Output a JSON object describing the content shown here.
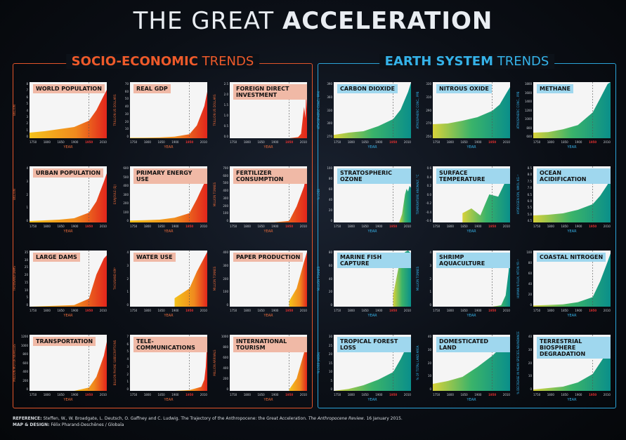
{
  "title_part1": "THE GREAT ",
  "title_part2": "ACCELERATION",
  "left_section": {
    "title_bold": "SOCIO-ECONOMIC",
    "title_rest": " TRENDS"
  },
  "right_section": {
    "title_bold": "EARTH SYSTEM",
    "title_rest": " TRENDS"
  },
  "footer": {
    "ref_label": "REFERENCE:",
    "ref_text": " Steffen, W., W. Broadgate, L. Deutsch, O. Gaffney and C. Ludwig. The Trajectory of the Anthropocene: the Great Acceleration. ",
    "ref_journal": "The Anthropocene Review",
    "ref_date": ". 16 January 2015.",
    "design_label": "MAP & DESIGN:",
    "design_text": " Félix Pharand-Deschênes / Globaïa"
  },
  "colors": {
    "socio_accent": "#ee5a2a",
    "earth_accent": "#35b2e8"
  },
  "chart_data": [
    {
      "type": "area",
      "title": "WORLD POPULATION",
      "group": "socio",
      "ylabel": "BILLION",
      "xlabel": "YEAR",
      "yticks": [
        "8",
        "7",
        "6",
        "5",
        "4",
        "3",
        "2",
        "1",
        "0"
      ],
      "xticks": [
        "1750",
        "1800",
        "1850",
        "1900",
        "1950",
        "2010"
      ],
      "ylim": [
        0,
        8
      ],
      "x": [
        1750,
        1800,
        1850,
        1900,
        1950,
        1975,
        2000,
        2010
      ],
      "y": [
        0.8,
        1,
        1.3,
        1.6,
        2.5,
        4,
        6.1,
        6.9
      ]
    },
    {
      "type": "area",
      "title": "REAL GDP",
      "group": "socio",
      "ylabel": "TRILLION US DOLLARS",
      "xlabel": "YEAR",
      "yticks": [
        "70",
        "60",
        "50",
        "40",
        "30",
        "20",
        "10",
        "0"
      ],
      "xticks": [
        "1750",
        "1800",
        "1850",
        "1900",
        "1950",
        "2010"
      ],
      "ylim": [
        0,
        70
      ],
      "x": [
        1750,
        1800,
        1850,
        1900,
        1950,
        1975,
        2000,
        2010
      ],
      "y": [
        0.5,
        0.7,
        1,
        2,
        5,
        16,
        40,
        58
      ]
    },
    {
      "type": "area",
      "title": "FOREIGN DIRECT INVESTMENT",
      "group": "socio",
      "ylabel": "TRILLION US DOLLARS",
      "xlabel": "YEAR",
      "yticks": [
        "2.5",
        "2.0",
        "1.5",
        "1.0",
        "0.5",
        "0.0"
      ],
      "xticks": [
        "1750",
        "1800",
        "1850",
        "1900",
        "1950",
        "2010"
      ],
      "ylim": [
        0,
        2.5
      ],
      "x": [
        1750,
        1950,
        1980,
        1990,
        2000,
        2005,
        2007,
        2010
      ],
      "y": [
        0,
        0,
        0.05,
        0.2,
        1.4,
        0.9,
        2.1,
        1.3
      ]
    },
    {
      "type": "area",
      "title": "URBAN POPULATION",
      "group": "socio",
      "ylabel": "BILLION",
      "xlabel": "YEAR",
      "yticks": [
        "4",
        "3",
        "2",
        "1",
        "0"
      ],
      "xticks": [
        "1750",
        "1800",
        "1850",
        "1900",
        "1950",
        "2010"
      ],
      "ylim": [
        0,
        4
      ],
      "x": [
        1750,
        1800,
        1850,
        1900,
        1950,
        1975,
        2000,
        2010
      ],
      "y": [
        0.1,
        0.15,
        0.2,
        0.3,
        0.7,
        1.5,
        2.9,
        3.5
      ]
    },
    {
      "type": "area",
      "title": "PRIMARY ENERGY USE",
      "group": "socio",
      "ylabel": "EXAJOULE (EJ)",
      "xlabel": "YEAR",
      "yticks": [
        "600",
        "500",
        "400",
        "300",
        "200",
        "100",
        "0"
      ],
      "xticks": [
        "1750",
        "1800",
        "1850",
        "1900",
        "1950",
        "2010"
      ],
      "ylim": [
        0,
        600
      ],
      "x": [
        1750,
        1800,
        1850,
        1900,
        1950,
        1975,
        2000,
        2010
      ],
      "y": [
        20,
        25,
        30,
        50,
        100,
        250,
        420,
        530
      ]
    },
    {
      "type": "area",
      "title": "FERTILIZER CONSUMPTION",
      "group": "socio",
      "ylabel": "MILLION TONNES",
      "xlabel": "YEAR",
      "yticks": [
        "700",
        "600",
        "500",
        "400",
        "300",
        "200",
        "100",
        "0"
      ],
      "xticks": [
        "1750",
        "1800",
        "1850",
        "1900",
        "1950",
        "2010"
      ],
      "ylim": [
        0,
        700
      ],
      "x": [
        1750,
        1900,
        1950,
        1975,
        2000,
        2010
      ],
      "y": [
        0,
        2,
        20,
        200,
        450,
        650
      ]
    },
    {
      "type": "area",
      "title": "LARGE DAMS",
      "group": "socio",
      "ylabel": "THOUSAND DAMS",
      "xlabel": "YEAR",
      "yticks": [
        "35",
        "30",
        "25",
        "20",
        "15",
        "10",
        "5",
        "0"
      ],
      "xticks": [
        "1750",
        "1800",
        "1850",
        "1900",
        "1950",
        "2010"
      ],
      "ylim": [
        0,
        35
      ],
      "x": [
        1750,
        1900,
        1950,
        1975,
        2000,
        2010
      ],
      "y": [
        0,
        1,
        5,
        20,
        30,
        32
      ]
    },
    {
      "type": "area",
      "title": "WATER USE",
      "group": "socio",
      "ylabel": "THOUSAND KM³",
      "xlabel": "YEAR",
      "yticks": [
        "4",
        "3",
        "2",
        "1",
        "0"
      ],
      "xticks": [
        "1750",
        "1800",
        "1850",
        "1900",
        "1950",
        "2010"
      ],
      "ylim": [
        0,
        4
      ],
      "x": [
        1900,
        1950,
        1975,
        2000,
        2010
      ],
      "y": [
        0.6,
        1.3,
        2.5,
        3.5,
        3.9
      ]
    },
    {
      "type": "area",
      "title": "PAPER PRODUCTION",
      "group": "socio",
      "ylabel": "MILLION TONNES",
      "xlabel": "YEAR",
      "yticks": [
        "400",
        "300",
        "200",
        "100",
        "0"
      ],
      "xticks": [
        "1750",
        "1800",
        "1850",
        "1900",
        "1950",
        "2010"
      ],
      "ylim": [
        0,
        400
      ],
      "x": [
        1950,
        1975,
        2000,
        2010
      ],
      "y": [
        40,
        130,
        320,
        390
      ]
    },
    {
      "type": "area",
      "title": "TRANSPORTATION",
      "group": "socio",
      "ylabel": "MILLION MOTOR VEHICLES",
      "xlabel": "YEAR",
      "yticks": [
        "1200",
        "1000",
        "800",
        "600",
        "400",
        "200",
        "0"
      ],
      "xticks": [
        "1750",
        "1800",
        "1850",
        "1900",
        "1950",
        "2010"
      ],
      "ylim": [
        0,
        1200
      ],
      "x": [
        1900,
        1950,
        1975,
        2000,
        2010
      ],
      "y": [
        0,
        70,
        300,
        750,
        1050
      ]
    },
    {
      "type": "area",
      "title": "TELE- COMMUNICATIONS",
      "group": "socio",
      "ylabel": "BILLION PHONE SUBSCRIPTIONS",
      "xlabel": "YEAR",
      "yticks": [
        "7",
        "6",
        "5",
        "4",
        "3",
        "2",
        "1",
        "0"
      ],
      "xticks": [
        "1750",
        "1800",
        "1850",
        "1900",
        "1950",
        "2010"
      ],
      "ylim": [
        0,
        7
      ],
      "x": [
        1900,
        1950,
        1990,
        2000,
        2005,
        2010
      ],
      "y": [
        0,
        0.1,
        0.5,
        1.4,
        3,
        6.5
      ]
    },
    {
      "type": "area",
      "title": "INTERNATIONAL TOURISM",
      "group": "socio",
      "ylabel": "MILLION ARRIVALS",
      "xlabel": "YEAR",
      "yticks": [
        "1000",
        "800",
        "600",
        "400",
        "200",
        "0"
      ],
      "xticks": [
        "1750",
        "1800",
        "1850",
        "1900",
        "1950",
        "2010"
      ],
      "ylim": [
        0,
        1000
      ],
      "x": [
        1950,
        1975,
        2000,
        2010
      ],
      "y": [
        25,
        220,
        680,
        940
      ]
    },
    {
      "type": "area",
      "title": "CARBON DIOXIDE",
      "group": "earth",
      "ylabel": "ATMOSPHERIC CONC., PPM",
      "xlabel": "YEAR",
      "yticks": [
        "390",
        "360",
        "330",
        "300",
        "270"
      ],
      "xticks": [
        "1750",
        "1800",
        "1850",
        "1900",
        "1950",
        "2010"
      ],
      "ylim": [
        270,
        390
      ],
      "x": [
        1750,
        1800,
        1850,
        1900,
        1950,
        1975,
        2000,
        2010
      ],
      "y": [
        277,
        282,
        285,
        296,
        311,
        331,
        369,
        389
      ]
    },
    {
      "type": "area",
      "title": "NITROUS OXIDE",
      "group": "earth",
      "ylabel": "ATMOSPHERIC CONC., PPB",
      "xlabel": "YEAR",
      "yticks": [
        "330",
        "310",
        "290",
        "270",
        "250"
      ],
      "xticks": [
        "1750",
        "1800",
        "1850",
        "1900",
        "1950",
        "2010"
      ],
      "ylim": [
        250,
        330
      ],
      "x": [
        1750,
        1800,
        1850,
        1900,
        1950,
        1975,
        2000,
        2010
      ],
      "y": [
        270,
        271,
        275,
        280,
        289,
        298,
        316,
        323
      ]
    },
    {
      "type": "area",
      "title": "METHANE",
      "group": "earth",
      "ylabel": "ATMOSPHERIC CONC., PPB",
      "xlabel": "YEAR",
      "yticks": [
        "1800",
        "1600",
        "1400",
        "1200",
        "1000",
        "800",
        "600"
      ],
      "xticks": [
        "1750",
        "1800",
        "1850",
        "1900",
        "1950",
        "2010"
      ],
      "ylim": [
        600,
        1800
      ],
      "x": [
        1750,
        1800,
        1850,
        1900,
        1950,
        1975,
        2000,
        2010
      ],
      "y": [
        720,
        730,
        790,
        880,
        1150,
        1450,
        1760,
        1800
      ]
    },
    {
      "type": "area",
      "title": "STRATOSPHERIC OZONE",
      "group": "earth",
      "ylabel": "% LOSS",
      "xlabel": "YEAR",
      "yticks": [
        "100",
        "80",
        "60",
        "40",
        "20",
        "0"
      ],
      "xticks": [
        "1750",
        "1800",
        "1850",
        "1900",
        "1950",
        "2010"
      ],
      "ylim": [
        0,
        100
      ],
      "x": [
        1970,
        1980,
        1990,
        1995,
        2000,
        2005,
        2010
      ],
      "y": [
        0,
        15,
        50,
        60,
        55,
        65,
        62
      ]
    },
    {
      "type": "area",
      "title": "SURFACE TEMPERATURE",
      "group": "earth",
      "ylabel": "TEMPERATURE ANOMALY, °C",
      "xlabel": "YEAR",
      "yticks": [
        "0.6",
        "0.4",
        "0.2",
        "0.0",
        "-0.2",
        "-0.4",
        "-0.6"
      ],
      "xticks": [
        "1750",
        "1800",
        "1850",
        "1900",
        "1950",
        "2010"
      ],
      "ylim": [
        -0.6,
        0.6
      ],
      "x": [
        1850,
        1880,
        1910,
        1940,
        1970,
        2000,
        2010
      ],
      "y": [
        -0.4,
        -0.3,
        -0.45,
        0.0,
        -0.05,
        0.35,
        0.5
      ]
    },
    {
      "type": "area",
      "title": "OCEAN ACIDIFICATION",
      "group": "earth",
      "ylabel": "HYDROGEN ION, NMOL KG⁻¹",
      "xlabel": "YEAR",
      "yticks": [
        "8.5",
        "8.0",
        "7.5",
        "7.0",
        "6.5",
        "6.0",
        "5.5",
        "5.0",
        "4.5"
      ],
      "xticks": [
        "1750",
        "1800",
        "1850",
        "1900",
        "1950",
        "2010"
      ],
      "ylim": [
        4.5,
        8.5
      ],
      "x": [
        1750,
        1800,
        1850,
        1900,
        1950,
        1975,
        2000,
        2010
      ],
      "y": [
        5,
        5.05,
        5.15,
        5.4,
        5.8,
        6.4,
        7.2,
        7.8
      ]
    },
    {
      "type": "area",
      "title": "MARINE FISH CAPTURE",
      "group": "earth",
      "ylabel": "MILLION TONNES",
      "xlabel": "YEAR",
      "yticks": [
        "80",
        "60",
        "40",
        "20",
        "0"
      ],
      "xticks": [
        "1750",
        "1800",
        "1850",
        "1900",
        "1950",
        "2010"
      ],
      "ylim": [
        0,
        80
      ],
      "x": [
        1950,
        1970,
        1990,
        2000,
        2010
      ],
      "y": [
        17,
        60,
        78,
        80,
        76
      ]
    },
    {
      "type": "area",
      "title": "SHRIMP AQUACULTURE",
      "group": "earth",
      "ylabel": "MILLION TONNES",
      "xlabel": "YEAR",
      "yticks": [
        "4",
        "3",
        "2",
        "1",
        "0"
      ],
      "xticks": [
        "1750",
        "1800",
        "1850",
        "1900",
        "1950",
        "2010"
      ],
      "ylim": [
        0,
        4
      ],
      "x": [
        1950,
        1980,
        1995,
        2005,
        2010
      ],
      "y": [
        0,
        0.1,
        0.8,
        2.5,
        3.6
      ]
    },
    {
      "type": "area",
      "title": "COASTAL NITROGEN",
      "group": "earth",
      "ylabel": "HUMAN N FLUX, MTON YR⁻¹",
      "xlabel": "YEAR",
      "yticks": [
        "100",
        "80",
        "60",
        "40",
        "20",
        "0"
      ],
      "xticks": [
        "1750",
        "1800",
        "1850",
        "1900",
        "1950",
        "2010"
      ],
      "ylim": [
        0,
        100
      ],
      "x": [
        1750,
        1800,
        1850,
        1900,
        1950,
        1975,
        2000,
        2010
      ],
      "y": [
        2,
        3,
        4,
        8,
        17,
        45,
        80,
        95
      ]
    },
    {
      "type": "area",
      "title": "TROPICAL FOREST LOSS",
      "group": "earth",
      "ylabel": "% LOSS (AREA)",
      "xlabel": "YEAR",
      "yticks": [
        "30",
        "25",
        "20",
        "15",
        "10",
        "5",
        "0"
      ],
      "xticks": [
        "1750",
        "1800",
        "1850",
        "1900",
        "1950",
        "2010"
      ],
      "ylim": [
        0,
        30
      ],
      "x": [
        1750,
        1800,
        1850,
        1900,
        1950,
        1975,
        2000,
        2010
      ],
      "y": [
        0,
        1,
        3,
        6,
        10,
        17,
        25,
        28
      ]
    },
    {
      "type": "area",
      "title": "DOMESTICATED LAND",
      "group": "earth",
      "ylabel": "% OF TOTAL LAND AREA",
      "xlabel": "YEAR",
      "yticks": [
        "40",
        "30",
        "20",
        "10",
        "0"
      ],
      "xticks": [
        "1750",
        "1800",
        "1850",
        "1900",
        "1950",
        "2010"
      ],
      "ylim": [
        0,
        40
      ],
      "x": [
        1750,
        1800,
        1850,
        1900,
        1950,
        1975,
        2000,
        2010
      ],
      "y": [
        5,
        7,
        10,
        17,
        25,
        30,
        33,
        34
      ]
    },
    {
      "type": "area",
      "title": "TERRESTRIAL BIOSPHERE DEGRADATION",
      "group": "earth",
      "ylabel": "% DECREASE IN MEAN SPECIES ABUNDANCE",
      "xlabel": "YEAR",
      "yticks": [
        "40",
        "30",
        "20",
        "10",
        "0"
      ],
      "xticks": [
        "1750",
        "1800",
        "1850",
        "1900",
        "1950",
        "2010"
      ],
      "ylim": [
        0,
        40
      ],
      "x": [
        1750,
        1800,
        1850,
        1900,
        1950,
        1975,
        2000,
        2010
      ],
      "y": [
        1,
        2,
        3,
        6,
        12,
        20,
        28,
        33
      ]
    }
  ]
}
